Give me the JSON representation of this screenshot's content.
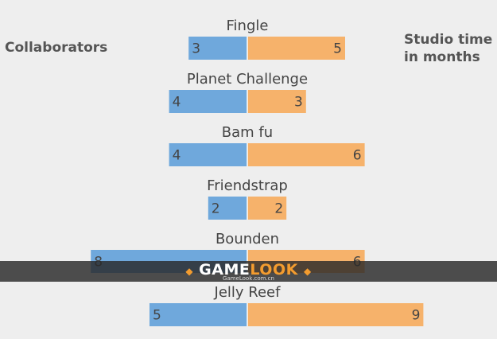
{
  "chart_data": {
    "type": "bar",
    "categories": [
      "Fingle",
      "Planet Challenge",
      "Bam fu",
      "Friendstrap",
      "Bounden",
      "Jelly Reef"
    ],
    "series": [
      {
        "name": "Collaborators",
        "values": [
          3,
          4,
          4,
          2,
          8,
          5
        ],
        "color": "#6fa8dc"
      },
      {
        "name": "Studio time in months",
        "values": [
          5,
          3,
          6,
          2,
          6,
          9
        ],
        "color": "#f6b26b"
      }
    ],
    "layout": "diverging-horizontal",
    "xlim": [
      -8,
      9
    ]
  },
  "labels": {
    "left": "Collaborators",
    "right": "Studio time\nin months"
  },
  "watermark": {
    "brand_part1": "GAME",
    "brand_part2": "LOOK",
    "site": "GameLook.com.cn"
  }
}
